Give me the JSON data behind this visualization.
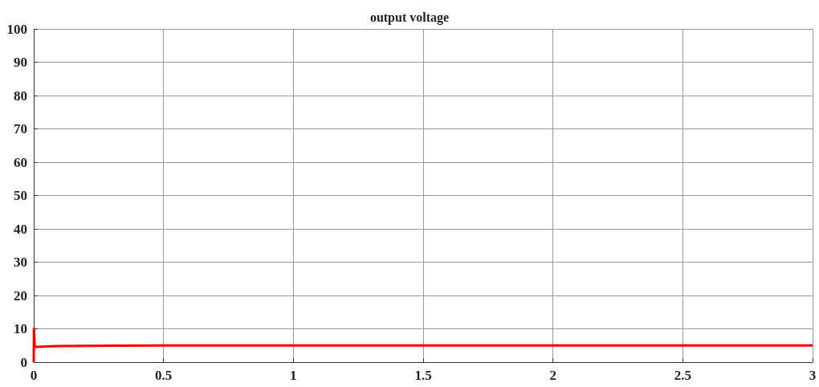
{
  "chart_data": {
    "type": "line",
    "title": "output voltage",
    "x": [
      0,
      0.001,
      0.004,
      0.02,
      0.05,
      0.1,
      0.2,
      0.5,
      1,
      1.5,
      2,
      2.5,
      3
    ],
    "series": [
      {
        "color": "#ff0000",
        "values": [
          0,
          10,
          4.6,
          4.6,
          4.7,
          4.8,
          4.9,
          5,
          5,
          5,
          5,
          5,
          5
        ]
      }
    ],
    "xlim": [
      0,
      3
    ],
    "xticks": [
      0,
      0.5,
      1,
      1.5,
      2,
      2.5,
      3
    ],
    "ylim": [
      0,
      100
    ],
    "yticks": [
      0,
      10,
      20,
      30,
      40,
      50,
      60,
      70,
      80,
      90,
      100
    ],
    "grid": true,
    "marker": "none",
    "line_style": "solid"
  }
}
